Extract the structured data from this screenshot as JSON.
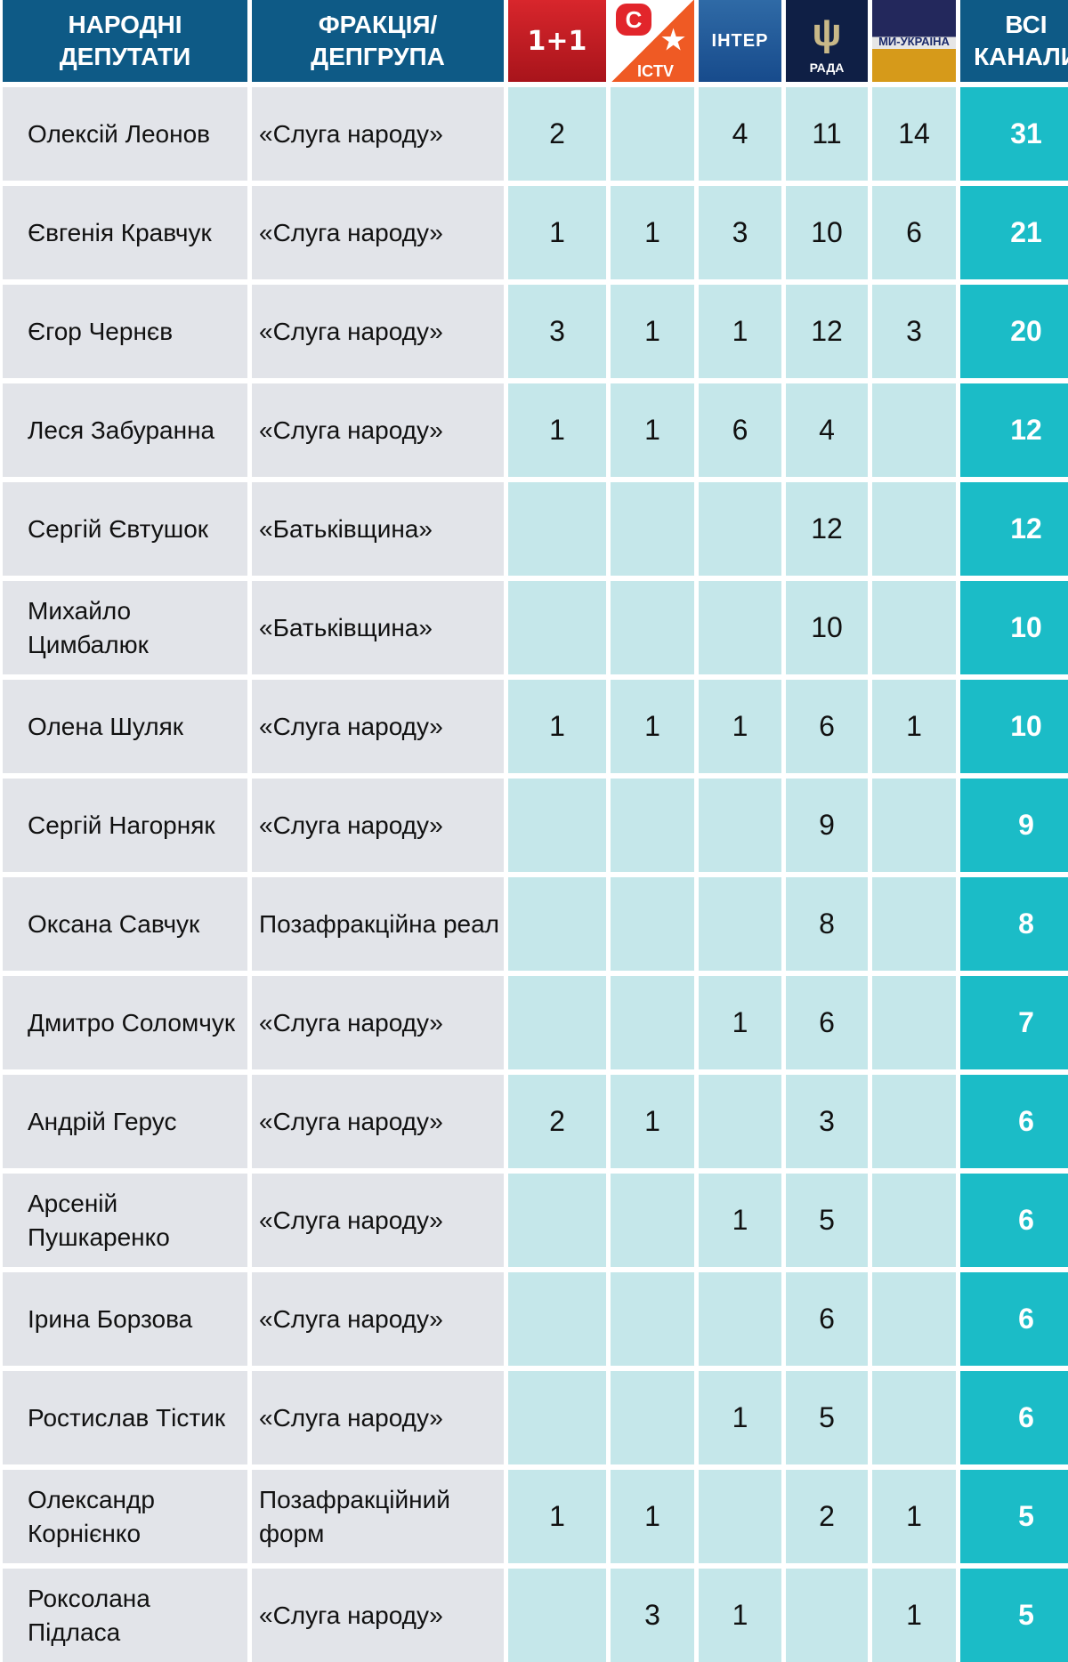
{
  "header": {
    "deputies": "НАРОДНІ ДЕПУТАТИ",
    "faction": "ФРАКЦІЯ/ ДЕПГРУПА",
    "total": "ВСІ КАНАЛИ",
    "channels": [
      {
        "name": "1+1",
        "logo": "1+1"
      },
      {
        "name": "ICTV",
        "logo": "ICTV"
      },
      {
        "name": "Інтер",
        "logo": "ІНТЕР"
      },
      {
        "name": "Рада",
        "logo": "РАДА"
      },
      {
        "name": "Ми-Україна",
        "logo": "МИ-УКРАЇНА"
      }
    ]
  },
  "colors": {
    "header": "#0e5a86",
    "name_cell": "#e2e4e9",
    "value_cell": "#c5e7ea",
    "total_cell": "#1bbcc7"
  },
  "rows": [
    {
      "name": "Олексій Леонов",
      "faction": "«Слуга народу»",
      "v": [
        "2",
        "",
        "4",
        "11",
        "14"
      ],
      "total": "31"
    },
    {
      "name": "Євгенія Кравчук",
      "faction": "«Слуга народу»",
      "v": [
        "1",
        "1",
        "3",
        "10",
        "6"
      ],
      "total": "21"
    },
    {
      "name": "Єгор Чернєв",
      "faction": "«Слуга народу»",
      "v": [
        "3",
        "1",
        "1",
        "12",
        "3"
      ],
      "total": "20"
    },
    {
      "name": "Леся Забуранна",
      "faction": "«Слуга народу»",
      "v": [
        "1",
        "1",
        "6",
        "4",
        ""
      ],
      "total": "12"
    },
    {
      "name": "Сергій Євтушок",
      "faction": "«Батьківщина»",
      "v": [
        "",
        "",
        "",
        "12",
        ""
      ],
      "total": "12"
    },
    {
      "name": "Михайло Цимбалюк",
      "faction": "«Батьківщина»",
      "v": [
        "",
        "",
        "",
        "10",
        ""
      ],
      "total": "10"
    },
    {
      "name": "Олена Шуляк",
      "faction": "«Слуга народу»",
      "v": [
        "1",
        "1",
        "1",
        "6",
        "1"
      ],
      "total": "10"
    },
    {
      "name": "Сергій Нагорняк",
      "faction": "«Слуга народу»",
      "v": [
        "",
        "",
        "",
        "9",
        ""
      ],
      "total": "9"
    },
    {
      "name": "Оксана Савчук",
      "faction": "Позафракційна реал",
      "v": [
        "",
        "",
        "",
        "8",
        ""
      ],
      "total": "8"
    },
    {
      "name": "Дмитро Соломчук",
      "faction": "«Слуга народу»",
      "v": [
        "",
        "",
        "1",
        "6",
        ""
      ],
      "total": "7"
    },
    {
      "name": "Андрій Герус",
      "faction": "«Слуга народу»",
      "v": [
        "2",
        "1",
        "",
        "3",
        ""
      ],
      "total": "6"
    },
    {
      "name": "Арсеній Пушкаренко",
      "faction": "«Слуга народу»",
      "v": [
        "",
        "",
        "1",
        "5",
        ""
      ],
      "total": "6"
    },
    {
      "name": "Ірина Борзова",
      "faction": "«Слуга народу»",
      "v": [
        "",
        "",
        "",
        "6",
        ""
      ],
      "total": "6"
    },
    {
      "name": "Ростислав Тістик",
      "faction": "«Слуга народу»",
      "v": [
        "",
        "",
        "1",
        "5",
        ""
      ],
      "total": "6"
    },
    {
      "name": "Олександр Корнієнко",
      "faction": "Позафракційний форм",
      "v": [
        "1",
        "1",
        "",
        "2",
        "1"
      ],
      "total": "5"
    },
    {
      "name": "Роксолана Підласа",
      "faction": "«Слуга народу»",
      "v": [
        "",
        "3",
        "1",
        "",
        "1"
      ],
      "total": "5"
    }
  ]
}
